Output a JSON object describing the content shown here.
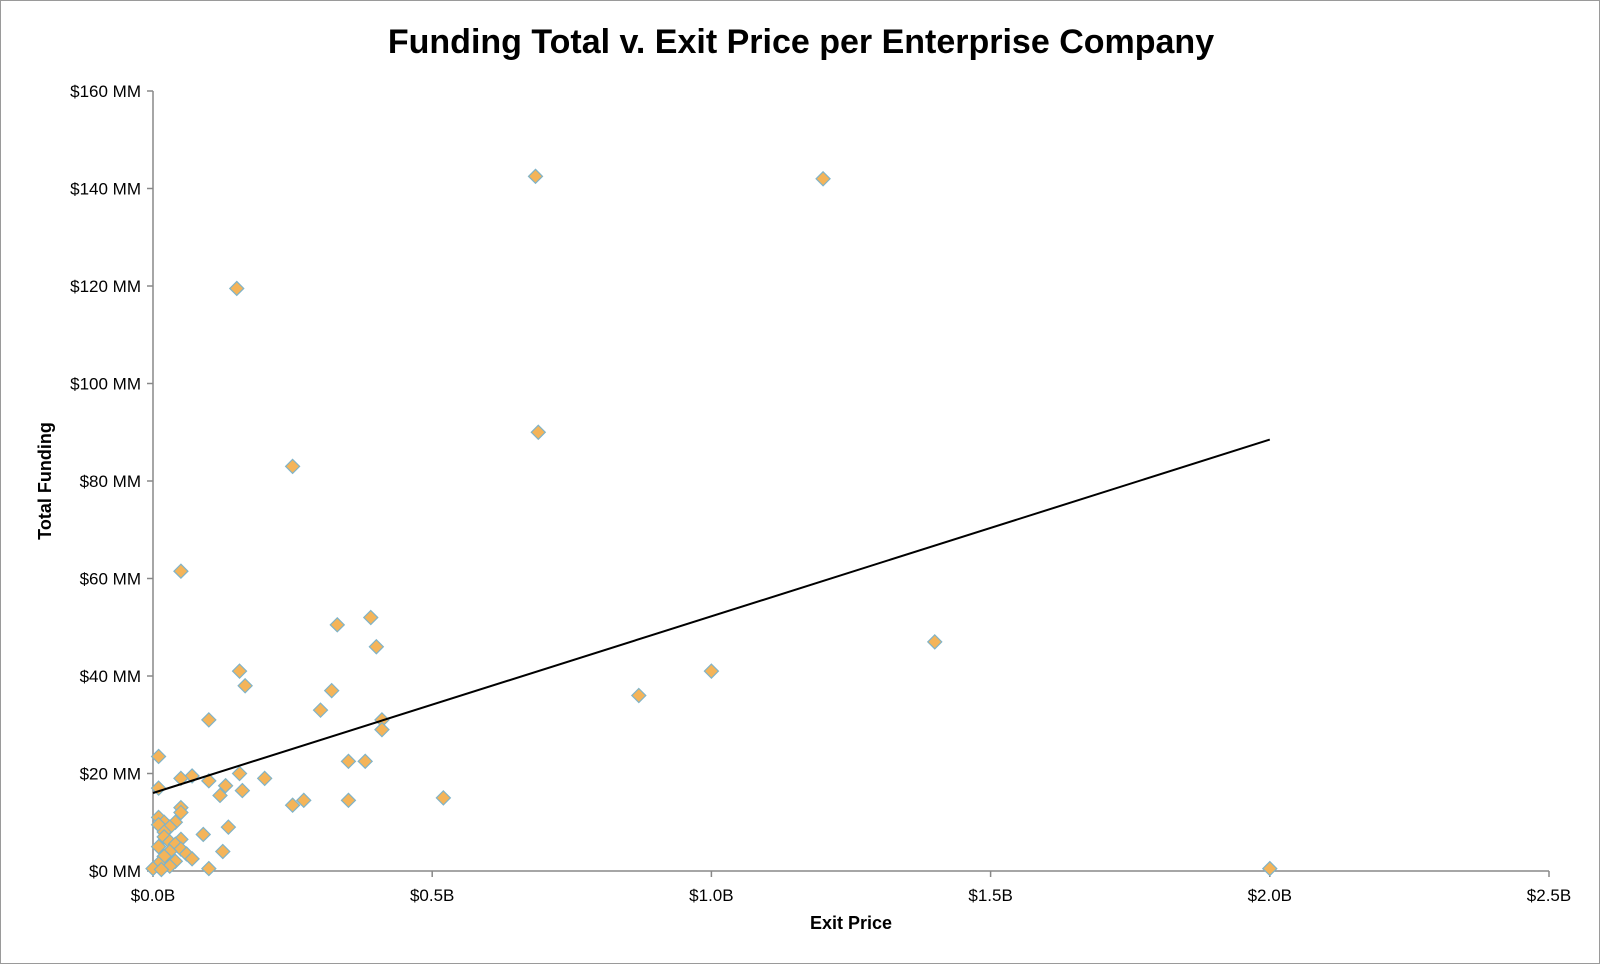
{
  "chart_data": {
    "type": "scatter",
    "title": "Funding Total v. Exit Price per Enterprise Company",
    "xlabel": "Exit Price",
    "ylabel": "Total Funding",
    "xlim": [
      0,
      2.5
    ],
    "ylim": [
      0,
      160
    ],
    "x_ticks": [
      0,
      0.5,
      1.0,
      1.5,
      2.0,
      2.5
    ],
    "x_tick_labels": [
      "$0.0B",
      "$0.5B",
      "$1.0B",
      "$1.5B",
      "$2.0B",
      "$2.5B"
    ],
    "y_ticks": [
      0,
      20,
      40,
      60,
      80,
      100,
      120,
      140,
      160
    ],
    "y_tick_labels": [
      "$0 MM",
      "$20 MM",
      "$40 MM",
      "$60 MM",
      "$80 MM",
      "$100 MM",
      "$120 MM",
      "$140 MM",
      "$160 MM"
    ],
    "grid": false,
    "legend": "none",
    "marker_color": "#f4b459",
    "marker_edge_color": "#7fb3c8",
    "trendline_color": "#000000",
    "trendline": {
      "x": [
        0,
        2.0
      ],
      "y": [
        16,
        88.5
      ]
    },
    "points": [
      {
        "x": 0.685,
        "y": 142.5
      },
      {
        "x": 1.2,
        "y": 142.0
      },
      {
        "x": 0.15,
        "y": 119.5
      },
      {
        "x": 0.69,
        "y": 90.0
      },
      {
        "x": 0.25,
        "y": 83.0
      },
      {
        "x": 0.05,
        "y": 61.5
      },
      {
        "x": 0.39,
        "y": 52.0
      },
      {
        "x": 0.33,
        "y": 50.5
      },
      {
        "x": 0.4,
        "y": 46.0
      },
      {
        "x": 1.4,
        "y": 47.0
      },
      {
        "x": 1.0,
        "y": 41.0
      },
      {
        "x": 0.155,
        "y": 41.0
      },
      {
        "x": 0.165,
        "y": 38.0
      },
      {
        "x": 0.32,
        "y": 37.0
      },
      {
        "x": 0.87,
        "y": 36.0
      },
      {
        "x": 0.3,
        "y": 33.0
      },
      {
        "x": 0.1,
        "y": 31.0
      },
      {
        "x": 0.41,
        "y": 31.0
      },
      {
        "x": 0.41,
        "y": 29.0
      },
      {
        "x": 0.01,
        "y": 23.5
      },
      {
        "x": 0.35,
        "y": 22.5
      },
      {
        "x": 0.38,
        "y": 22.5
      },
      {
        "x": 0.155,
        "y": 20.0
      },
      {
        "x": 0.07,
        "y": 19.5
      },
      {
        "x": 0.05,
        "y": 19.0
      },
      {
        "x": 0.2,
        "y": 19.0
      },
      {
        "x": 0.1,
        "y": 18.5
      },
      {
        "x": 0.13,
        "y": 17.5
      },
      {
        "x": 0.01,
        "y": 17.0
      },
      {
        "x": 0.16,
        "y": 16.5
      },
      {
        "x": 0.12,
        "y": 15.5
      },
      {
        "x": 0.52,
        "y": 15.0
      },
      {
        "x": 0.27,
        "y": 14.5
      },
      {
        "x": 0.35,
        "y": 14.5
      },
      {
        "x": 0.25,
        "y": 13.5
      },
      {
        "x": 0.05,
        "y": 13.0
      },
      {
        "x": 0.05,
        "y": 12.0
      },
      {
        "x": 0.01,
        "y": 11.0
      },
      {
        "x": 0.02,
        "y": 10.0
      },
      {
        "x": 0.04,
        "y": 10.0
      },
      {
        "x": 0.01,
        "y": 9.5
      },
      {
        "x": 0.03,
        "y": 9.0
      },
      {
        "x": 0.135,
        "y": 9.0
      },
      {
        "x": 0.02,
        "y": 8.0
      },
      {
        "x": 0.09,
        "y": 7.5
      },
      {
        "x": 0.02,
        "y": 7.0
      },
      {
        "x": 0.05,
        "y": 6.5
      },
      {
        "x": 0.03,
        "y": 6.0
      },
      {
        "x": 0.04,
        "y": 5.5
      },
      {
        "x": 0.01,
        "y": 5.0
      },
      {
        "x": 0.05,
        "y": 4.5
      },
      {
        "x": 0.03,
        "y": 4.0
      },
      {
        "x": 0.125,
        "y": 4.0
      },
      {
        "x": 0.06,
        "y": 3.5
      },
      {
        "x": 0.02,
        "y": 3.0
      },
      {
        "x": 0.07,
        "y": 2.5
      },
      {
        "x": 0.04,
        "y": 2.0
      },
      {
        "x": 0.01,
        "y": 1.5
      },
      {
        "x": 0.03,
        "y": 1.0
      },
      {
        "x": 0.0,
        "y": 0.5
      },
      {
        "x": 0.1,
        "y": 0.5
      },
      {
        "x": 0.015,
        "y": 0.3
      },
      {
        "x": 2.0,
        "y": 0.5
      }
    ]
  }
}
